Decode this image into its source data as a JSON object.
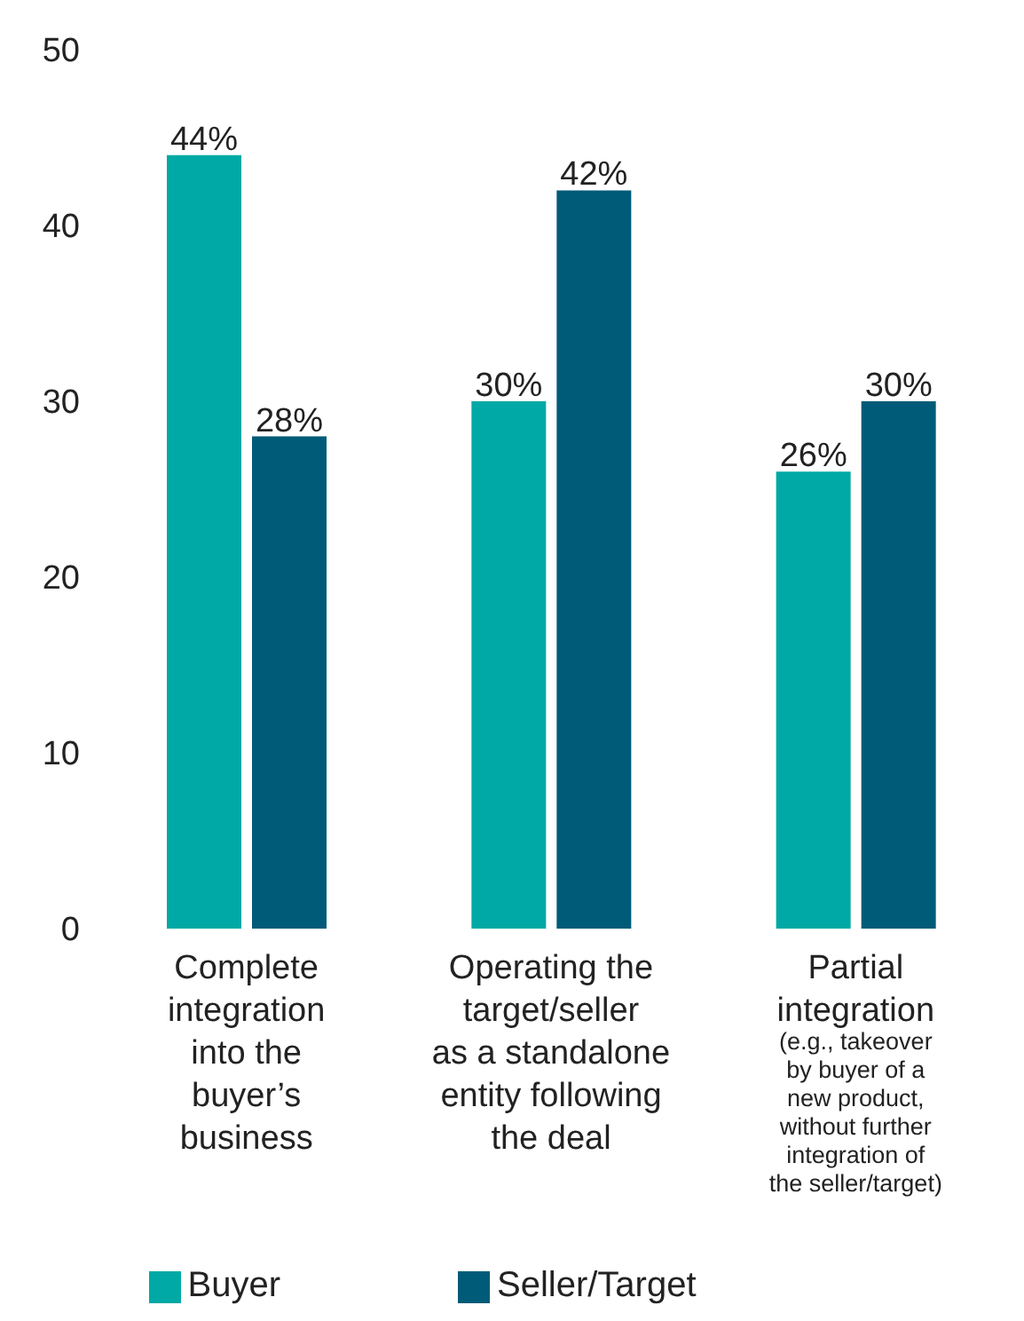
{
  "chart_data": {
    "type": "bar",
    "categories": [
      "Complete\nintegration\ninto the\nbuyer’s\nbusiness",
      "Operating the\ntarget/seller\nas a standalone\nentity following\nthe deal",
      "Partial\nintegration\n(e.g., takeover\nby buyer of a\nnew product,\nwithout further\nintegration of\nthe seller/target)"
    ],
    "series": [
      {
        "name": "Buyer",
        "color": "#00a9a5",
        "values": [
          44,
          30,
          26
        ],
        "value_labels": [
          "44%",
          "30%",
          "26%"
        ]
      },
      {
        "name": "Seller/Target",
        "color": "#005b78",
        "values": [
          28,
          42,
          30
        ],
        "value_labels": [
          "28%",
          "42%",
          "30%"
        ]
      }
    ],
    "ylim": [
      0,
      50
    ],
    "yticks": [
      0,
      10,
      20,
      30,
      40,
      50
    ],
    "grid": false,
    "legend": "bottom"
  }
}
